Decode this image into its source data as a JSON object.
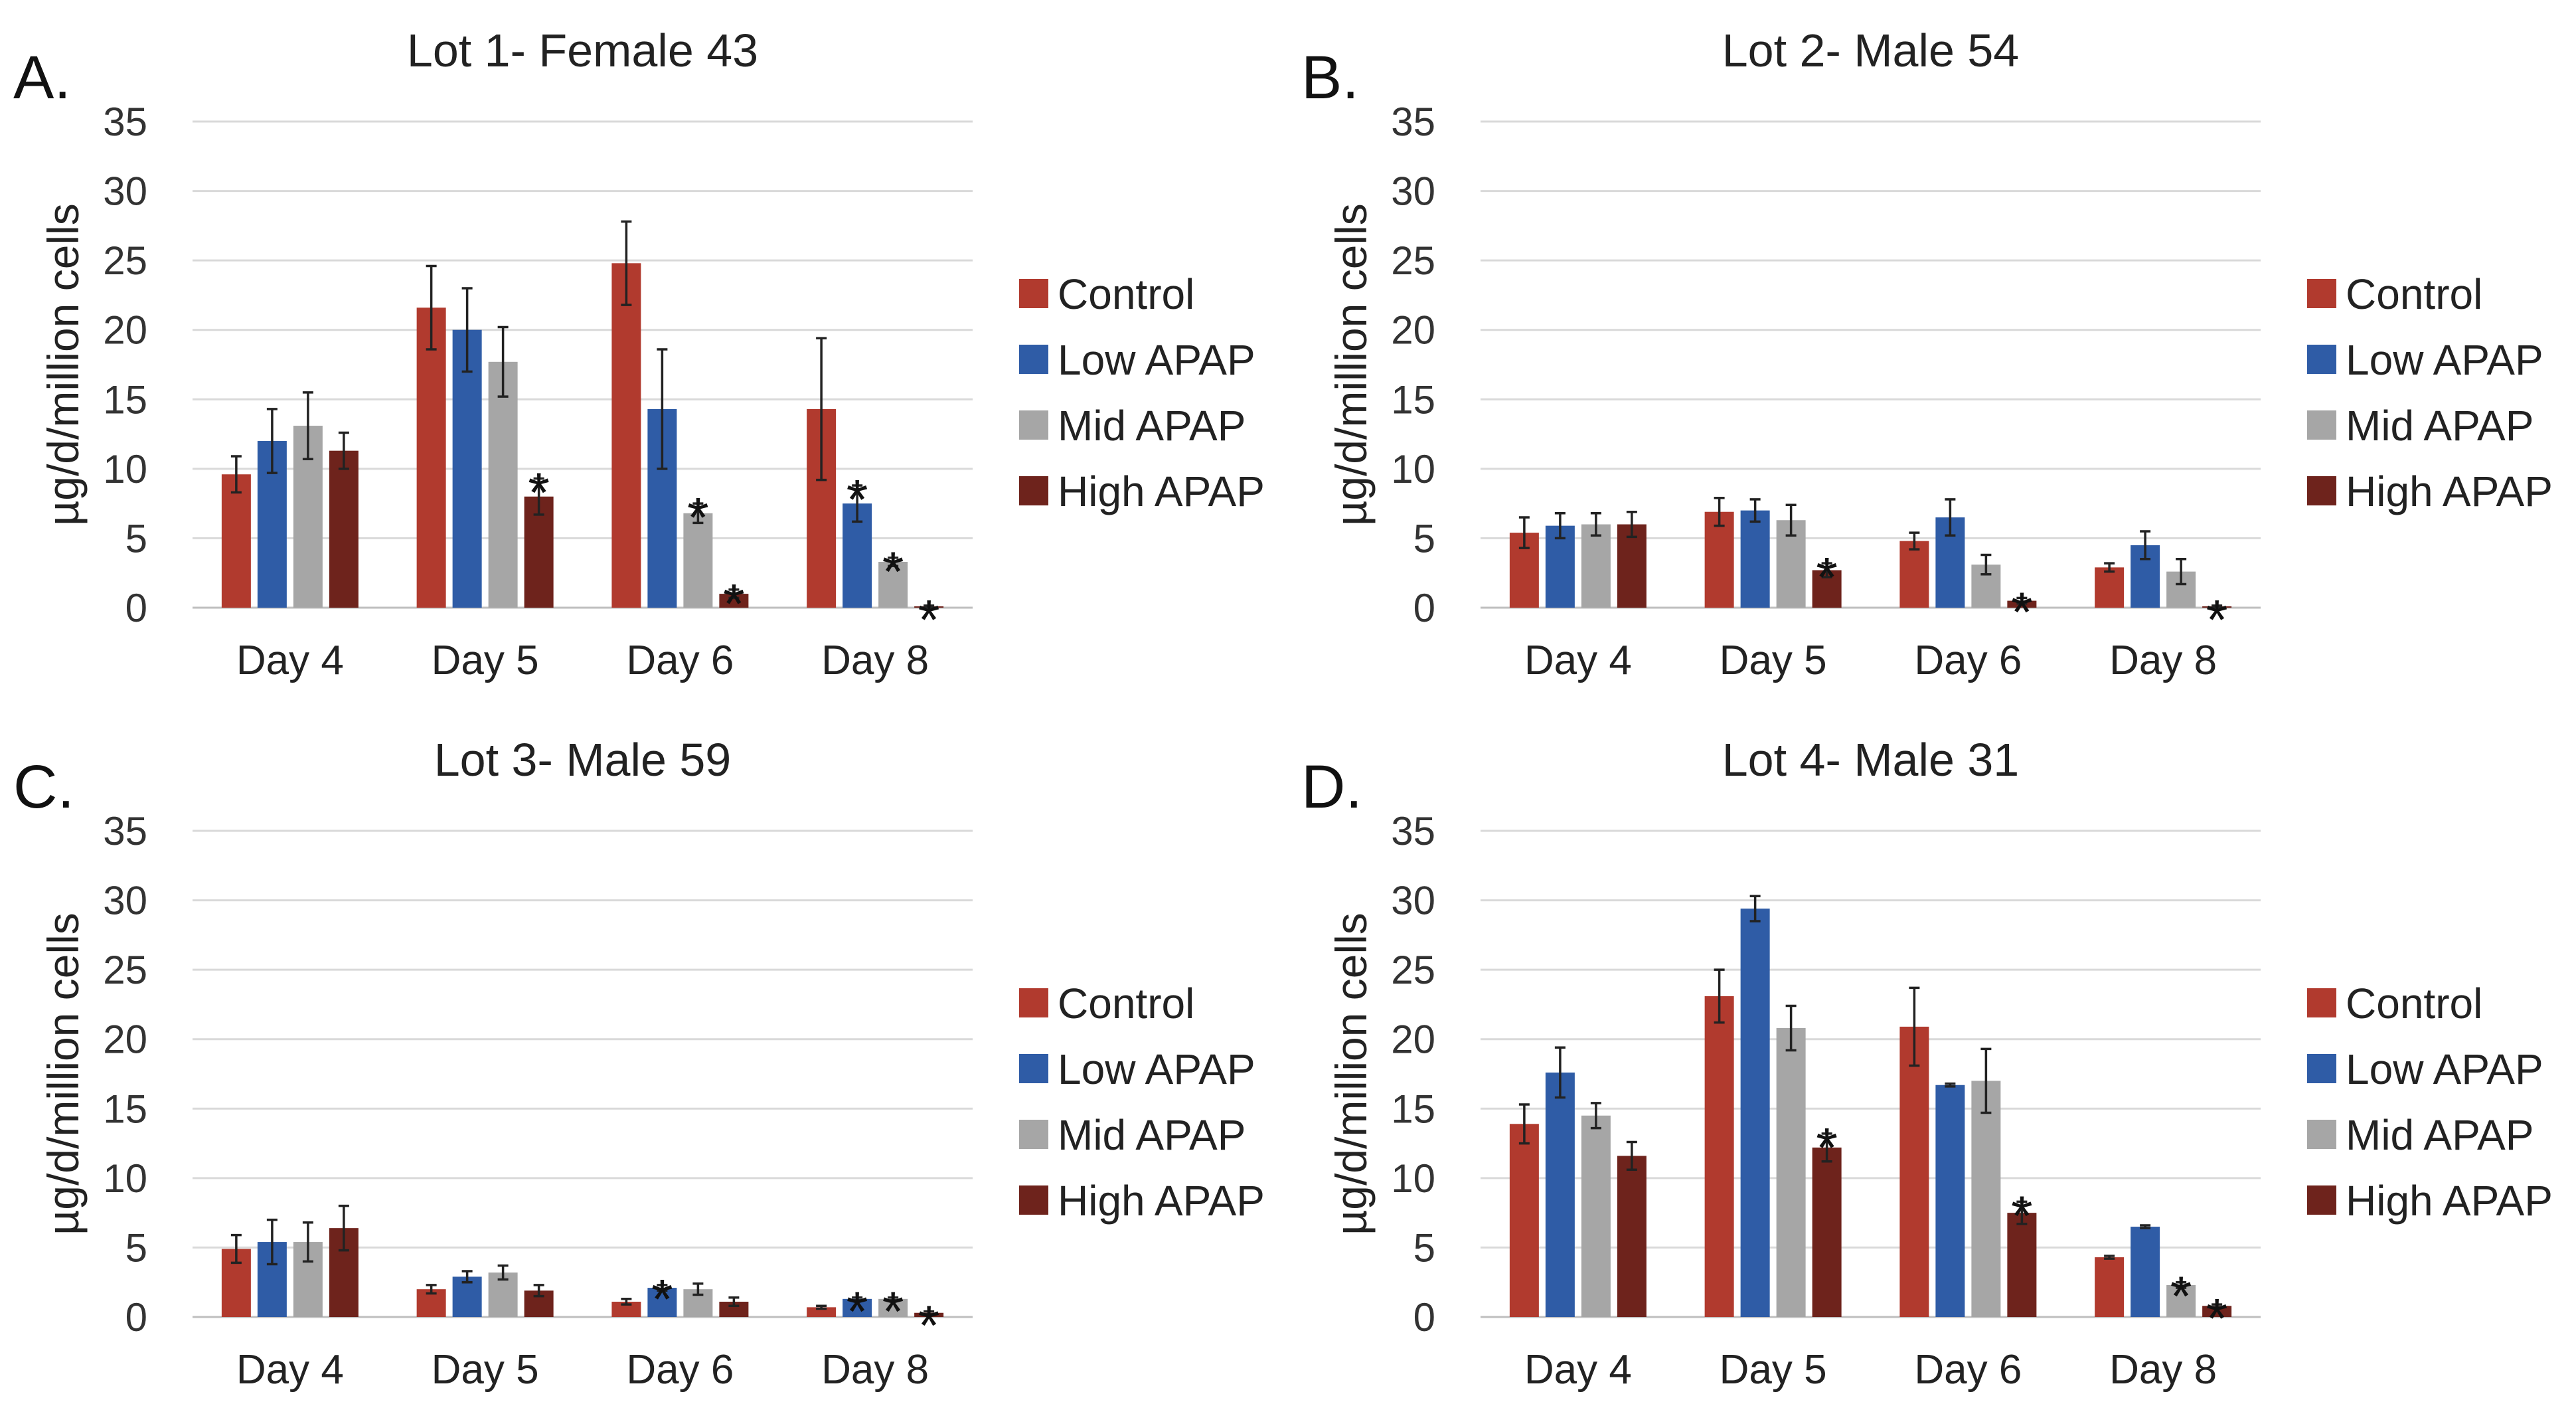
{
  "colors": {
    "control": "#b13a2e",
    "low_apap": "#2f5ca6",
    "mid_apap": "#a6a6a6",
    "high_apap": "#6e231c"
  },
  "chart_data": [
    {
      "type": "bar",
      "panel": "A.",
      "title": "Lot 1- Female 43",
      "ylabel": "µg/d/million cells",
      "xlabel": "",
      "ylim": [
        0,
        35
      ],
      "yticks": [
        0,
        5,
        10,
        15,
        20,
        25,
        30,
        35
      ],
      "grid": true,
      "legend": "right",
      "categories": [
        "Day 4",
        "Day 5",
        "Day 6",
        "Day 8"
      ],
      "series": [
        {
          "name": "Control",
          "values": [
            9.6,
            21.6,
            24.8,
            14.3
          ],
          "errors": [
            1.3,
            3.0,
            3.0,
            5.1
          ],
          "significant": [
            false,
            false,
            false,
            false
          ]
        },
        {
          "name": "Low APAP",
          "values": [
            12.0,
            20.0,
            14.3,
            7.5
          ],
          "errors": [
            2.3,
            3.0,
            4.3,
            1.3
          ],
          "significant": [
            false,
            false,
            false,
            true
          ]
        },
        {
          "name": "Mid APAP",
          "values": [
            13.1,
            17.7,
            6.8,
            3.3
          ],
          "errors": [
            2.4,
            2.5,
            0.7,
            0.3
          ],
          "significant": [
            false,
            false,
            true,
            true
          ]
        },
        {
          "name": "High APAP",
          "values": [
            11.3,
            8.0,
            1.0,
            0.1
          ],
          "errors": [
            1.3,
            1.3,
            0.3,
            0.05
          ],
          "significant": [
            false,
            true,
            true,
            true
          ]
        }
      ]
    },
    {
      "type": "bar",
      "panel": "B.",
      "title": "Lot 2- Male 54",
      "ylabel": "µg/d/million cells",
      "xlabel": "",
      "ylim": [
        0,
        35
      ],
      "yticks": [
        0,
        5,
        10,
        15,
        20,
        25,
        30,
        35
      ],
      "grid": true,
      "legend": "right",
      "categories": [
        "Day 4",
        "Day 5",
        "Day 6",
        "Day 8"
      ],
      "series": [
        {
          "name": "Control",
          "values": [
            5.4,
            6.9,
            4.8,
            2.9
          ],
          "errors": [
            1.1,
            1.0,
            0.6,
            0.3
          ],
          "significant": [
            false,
            false,
            false,
            false
          ]
        },
        {
          "name": "Low APAP",
          "values": [
            5.9,
            7.0,
            6.5,
            4.5
          ],
          "errors": [
            0.9,
            0.8,
            1.3,
            1.0
          ],
          "significant": [
            false,
            false,
            false,
            false
          ]
        },
        {
          "name": "Mid APAP",
          "values": [
            6.0,
            6.3,
            3.1,
            2.6
          ],
          "errors": [
            0.8,
            1.1,
            0.7,
            0.9
          ],
          "significant": [
            false,
            false,
            false,
            false
          ]
        },
        {
          "name": "High APAP",
          "values": [
            6.0,
            2.7,
            0.5,
            0.1
          ],
          "errors": [
            0.9,
            0.5,
            0.2,
            0.05
          ],
          "significant": [
            false,
            true,
            true,
            true
          ]
        }
      ]
    },
    {
      "type": "bar",
      "panel": "C.",
      "title": "Lot 3- Male 59",
      "ylabel": "µg/d/million cells",
      "xlabel": "",
      "ylim": [
        0,
        35
      ],
      "yticks": [
        0,
        5,
        10,
        15,
        20,
        25,
        30,
        35
      ],
      "grid": true,
      "legend": "right",
      "categories": [
        "Day 4",
        "Day 5",
        "Day 6",
        "Day 8"
      ],
      "series": [
        {
          "name": "Control",
          "values": [
            4.9,
            2.0,
            1.1,
            0.7
          ],
          "errors": [
            1.0,
            0.3,
            0.2,
            0.1
          ],
          "significant": [
            false,
            false,
            false,
            false
          ]
        },
        {
          "name": "Low APAP",
          "values": [
            5.4,
            2.9,
            2.1,
            1.3
          ],
          "errors": [
            1.6,
            0.4,
            0.2,
            0.1
          ],
          "significant": [
            false,
            false,
            true,
            true
          ]
        },
        {
          "name": "Mid APAP",
          "values": [
            5.4,
            3.2,
            2.0,
            1.3
          ],
          "errors": [
            1.4,
            0.5,
            0.4,
            0.1
          ],
          "significant": [
            false,
            false,
            false,
            true
          ]
        },
        {
          "name": "High APAP",
          "values": [
            6.4,
            1.9,
            1.1,
            0.3
          ],
          "errors": [
            1.6,
            0.4,
            0.3,
            0.1
          ],
          "significant": [
            false,
            false,
            false,
            true
          ]
        }
      ]
    },
    {
      "type": "bar",
      "panel": "D.",
      "title": "Lot 4- Male 31",
      "ylabel": "µg/d/million cells",
      "xlabel": "",
      "ylim": [
        0,
        35
      ],
      "yticks": [
        0,
        5,
        10,
        15,
        20,
        25,
        30,
        35
      ],
      "grid": true,
      "legend": "right",
      "categories": [
        "Day 4",
        "Day 5",
        "Day 6",
        "Day 8"
      ],
      "series": [
        {
          "name": "Control",
          "values": [
            13.9,
            23.1,
            20.9,
            4.3
          ],
          "errors": [
            1.4,
            1.9,
            2.8,
            0.1
          ],
          "significant": [
            false,
            false,
            false,
            false
          ]
        },
        {
          "name": "Low APAP",
          "values": [
            17.6,
            29.4,
            16.7,
            6.5
          ],
          "errors": [
            1.8,
            0.9,
            0.1,
            0.1
          ],
          "significant": [
            false,
            false,
            false,
            false
          ]
        },
        {
          "name": "Mid APAP",
          "values": [
            14.5,
            20.8,
            17.0,
            2.3
          ],
          "errors": [
            0.9,
            1.6,
            2.3,
            0.2
          ],
          "significant": [
            false,
            false,
            false,
            true
          ]
        },
        {
          "name": "High APAP",
          "values": [
            11.6,
            12.2,
            7.5,
            0.8
          ],
          "errors": [
            1.0,
            1.0,
            0.8,
            0.1
          ],
          "significant": [
            false,
            true,
            true,
            true
          ]
        }
      ]
    }
  ]
}
